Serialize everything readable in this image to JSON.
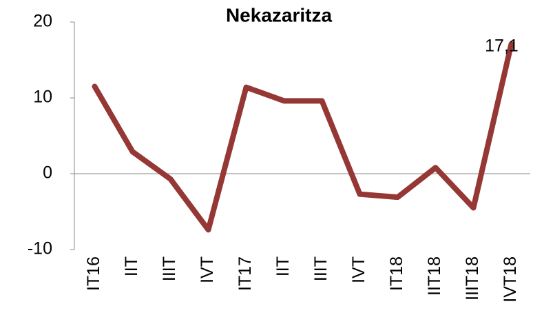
{
  "chart_data": {
    "type": "line",
    "title": "Nekazaritza",
    "categories": [
      "IT16",
      "IIT",
      "IIIT",
      "IVT",
      "IT17",
      "IIT",
      "IIIT",
      "IVT",
      "IT18",
      "IIT18",
      "IIIT18",
      "IVT18"
    ],
    "series": [
      {
        "name": null,
        "color": "#953735",
        "values": [
          11.5,
          2.9,
          -0.7,
          -7.4,
          11.4,
          9.6,
          9.6,
          -2.7,
          -3.1,
          0.8,
          -4.5,
          17.1
        ],
        "value_labels": [
          null,
          null,
          null,
          null,
          null,
          null,
          null,
          null,
          null,
          null,
          null,
          "17,1"
        ]
      }
    ],
    "ylim": [
      -10,
      20
    ],
    "yticks": [
      -10,
      0,
      10,
      20
    ],
    "grid": false
  }
}
